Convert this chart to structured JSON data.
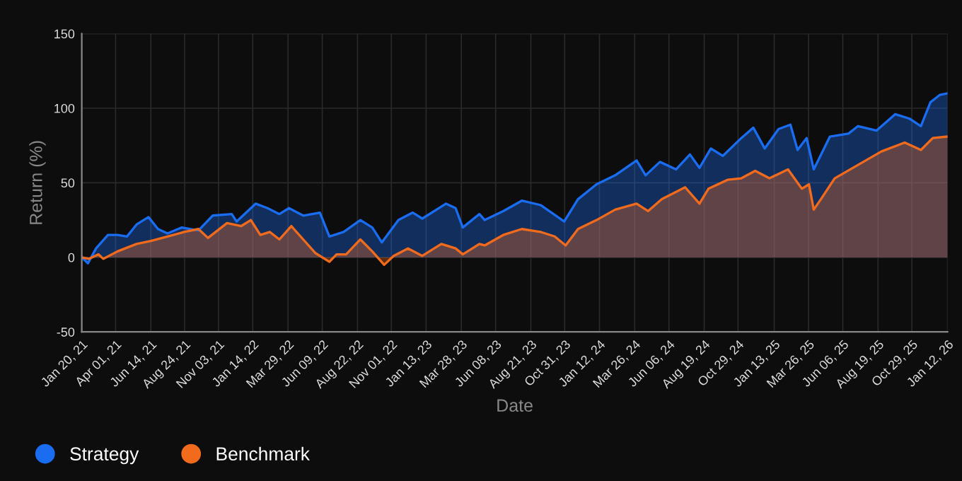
{
  "chart_data": {
    "type": "area",
    "xlabel": "Date",
    "ylabel": "Return (%)",
    "ylim": [
      -50,
      150
    ],
    "yticks": [
      -50,
      0,
      50,
      100,
      150
    ],
    "xlim": [
      "2021-01-20",
      "2026-01-12"
    ],
    "xticks": [
      {
        "value": "2021-01-20",
        "label": "Jan 20, 21"
      },
      {
        "value": "2021-04-01",
        "label": "Apr 01, 21"
      },
      {
        "value": "2021-06-14",
        "label": "Jun 14, 21"
      },
      {
        "value": "2021-08-24",
        "label": "Aug 24, 21"
      },
      {
        "value": "2021-11-03",
        "label": "Nov 03, 21"
      },
      {
        "value": "2022-01-14",
        "label": "Jan 14, 22"
      },
      {
        "value": "2022-03-29",
        "label": "Mar 29, 22"
      },
      {
        "value": "2022-06-09",
        "label": "Jun 09, 22"
      },
      {
        "value": "2022-08-22",
        "label": "Aug 22, 22"
      },
      {
        "value": "2022-11-01",
        "label": "Nov 01, 22"
      },
      {
        "value": "2023-01-13",
        "label": "Jan 13, 23"
      },
      {
        "value": "2023-03-28",
        "label": "Mar 28, 23"
      },
      {
        "value": "2023-06-08",
        "label": "Jun 08, 23"
      },
      {
        "value": "2023-08-21",
        "label": "Aug 21, 23"
      },
      {
        "value": "2023-10-31",
        "label": "Oct 31, 23"
      },
      {
        "value": "2024-01-12",
        "label": "Jan 12, 24"
      },
      {
        "value": "2024-03-26",
        "label": "Mar 26, 24"
      },
      {
        "value": "2024-06-06",
        "label": "Jun 06, 24"
      },
      {
        "value": "2024-08-19",
        "label": "Aug 19, 24"
      },
      {
        "value": "2024-10-29",
        "label": "Oct 29, 24"
      },
      {
        "value": "2025-01-13",
        "label": "Jan 13, 25"
      },
      {
        "value": "2025-03-26",
        "label": "Mar 26, 25"
      },
      {
        "value": "2025-06-06",
        "label": "Jun 06, 25"
      },
      {
        "value": "2025-08-19",
        "label": "Aug 19, 25"
      },
      {
        "value": "2025-10-29",
        "label": "Oct 29, 25"
      },
      {
        "value": "2026-01-12",
        "label": "Jan 12, 26"
      }
    ],
    "grid": true,
    "legend": "bottom left",
    "series": [
      {
        "name": "Strategy",
        "color": "#1a6cf0",
        "x": [
          "2021-01-20",
          "2021-02-02",
          "2021-02-19",
          "2021-03-16",
          "2021-04-05",
          "2021-04-25",
          "2021-05-15",
          "2021-06-09",
          "2021-06-29",
          "2021-07-19",
          "2021-08-18",
          "2021-09-22",
          "2021-10-22",
          "2021-12-01",
          "2021-12-11",
          "2022-01-20",
          "2022-02-14",
          "2022-03-11",
          "2022-03-31",
          "2022-04-30",
          "2022-06-04",
          "2022-06-24",
          "2022-07-24",
          "2022-08-28",
          "2022-09-22",
          "2022-10-12",
          "2022-11-16",
          "2022-12-16",
          "2023-01-05",
          "2023-02-24",
          "2023-03-16",
          "2023-03-31",
          "2023-05-05",
          "2023-05-16",
          "2023-06-24",
          "2023-08-02",
          "2023-09-11",
          "2023-10-30",
          "2023-11-28",
          "2024-01-06",
          "2024-02-14",
          "2024-03-30",
          "2024-04-18",
          "2024-05-18",
          "2024-06-21",
          "2024-07-20",
          "2024-08-09",
          "2024-09-02",
          "2024-09-27",
          "2024-11-05",
          "2024-11-30",
          "2024-12-24",
          "2025-01-22",
          "2025-02-16",
          "2025-03-03",
          "2025-03-22",
          "2025-04-06",
          "2025-05-10",
          "2025-06-18",
          "2025-07-08",
          "2025-08-16",
          "2025-09-24",
          "2025-10-24",
          "2025-11-17",
          "2025-12-07",
          "2025-12-27",
          "2026-01-12"
        ],
        "values": [
          0,
          -4,
          6,
          15,
          15,
          14,
          22,
          27,
          19,
          16,
          20,
          18,
          28,
          29,
          24,
          36,
          33,
          29,
          33,
          28,
          30,
          14,
          17,
          25,
          20,
          10,
          25,
          30,
          26,
          36,
          33,
          20,
          29,
          25,
          31,
          38,
          35,
          24,
          39,
          49,
          55,
          65,
          55,
          64,
          59,
          69,
          60,
          73,
          68,
          80,
          87,
          73,
          86,
          89,
          72,
          80,
          59,
          81,
          83,
          88,
          85,
          96,
          93,
          88,
          104,
          109,
          110
        ]
      },
      {
        "name": "Benchmark",
        "color": "#f26b1d",
        "x": [
          "2021-01-20",
          "2021-02-04",
          "2021-02-24",
          "2021-03-06",
          "2021-04-05",
          "2021-05-15",
          "2021-06-14",
          "2021-07-19",
          "2021-08-23",
          "2021-09-22",
          "2021-10-12",
          "2021-11-21",
          "2021-12-21",
          "2022-01-10",
          "2022-01-30",
          "2022-02-19",
          "2022-03-11",
          "2022-04-05",
          "2022-04-30",
          "2022-05-25",
          "2022-06-24",
          "2022-07-09",
          "2022-07-29",
          "2022-08-28",
          "2022-09-22",
          "2022-10-17",
          "2022-11-06",
          "2022-12-06",
          "2023-01-05",
          "2023-02-14",
          "2023-03-16",
          "2023-03-31",
          "2023-05-05",
          "2023-05-16",
          "2023-06-24",
          "2023-08-02",
          "2023-09-11",
          "2023-10-10",
          "2023-11-02",
          "2023-11-28",
          "2024-01-06",
          "2024-02-14",
          "2024-03-30",
          "2024-04-23",
          "2024-05-22",
          "2024-07-10",
          "2024-08-09",
          "2024-08-28",
          "2024-10-07",
          "2024-11-05",
          "2024-12-04",
          "2025-01-03",
          "2025-02-11",
          "2025-03-12",
          "2025-03-27",
          "2025-04-06",
          "2025-04-21",
          "2025-05-20",
          "2025-07-08",
          "2025-08-26",
          "2025-10-14",
          "2025-11-17",
          "2025-12-12",
          "2026-01-12"
        ],
        "values": [
          0,
          -1,
          2,
          -1,
          4,
          9,
          11,
          14,
          17,
          19,
          13,
          23,
          21,
          25,
          15,
          17,
          12,
          21,
          12,
          3,
          -3,
          2,
          2,
          12,
          4,
          -5,
          1,
          6,
          1,
          9,
          6,
          2,
          9,
          8,
          15,
          19,
          17,
          14,
          8,
          19,
          25,
          32,
          36,
          31,
          39,
          47,
          36,
          46,
          52,
          53,
          58,
          53,
          59,
          46,
          49,
          32,
          39,
          53,
          62,
          71,
          77,
          72,
          80,
          81
        ]
      }
    ]
  }
}
